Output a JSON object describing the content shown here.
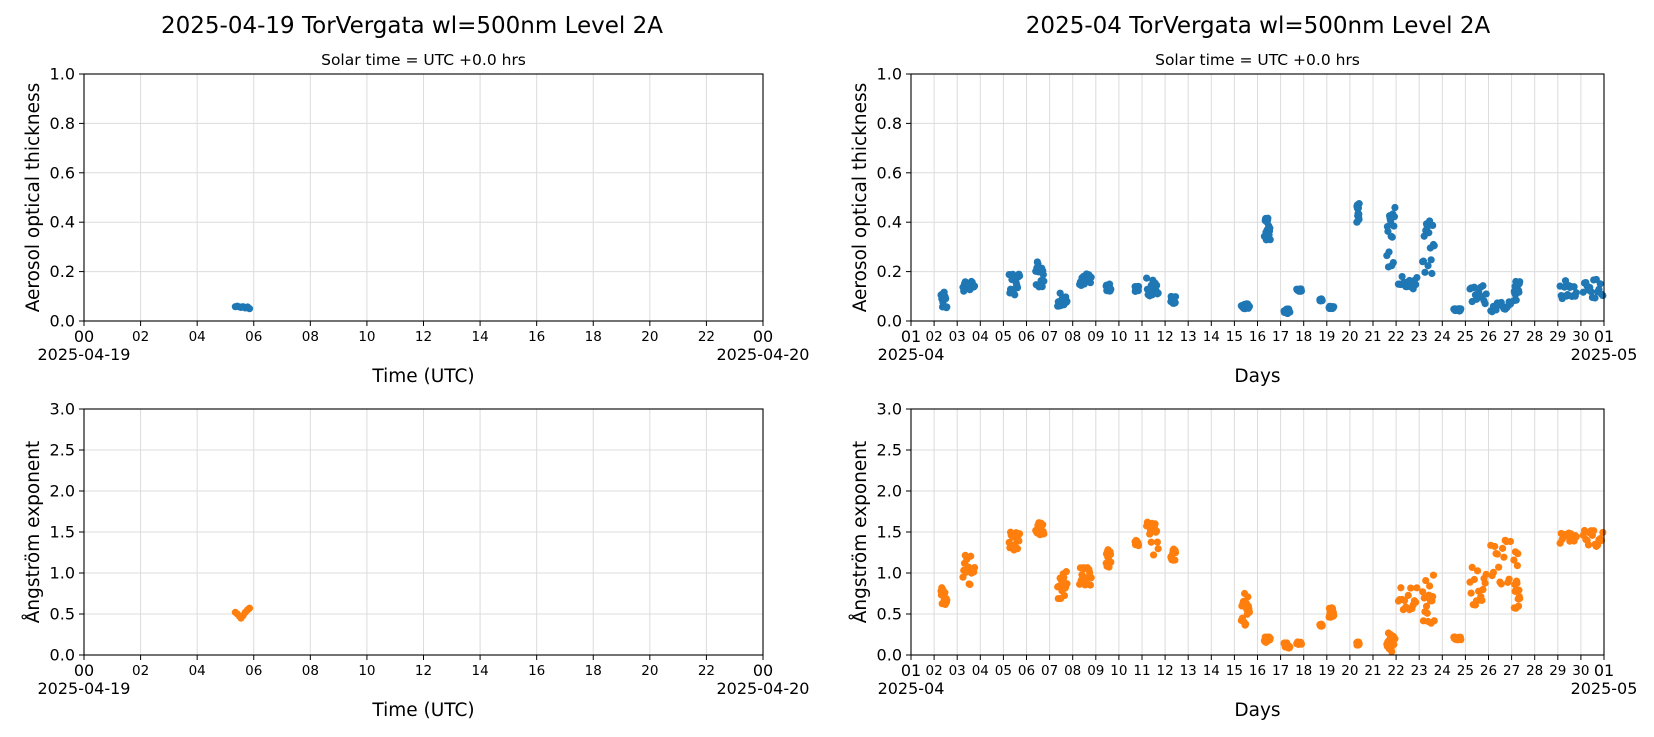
{
  "colors": {
    "aot": "#1f77b4",
    "angstrom": "#ff7f0e",
    "grid": "#dcdcdc"
  },
  "left_title": "2025-04-19  TorVergata  wl=500nm  Level 2A",
  "right_title": "2025-04  TorVergata  wl=500nm  Level 2A",
  "chart_data": [
    {
      "id": "daily_aot",
      "type": "scatter",
      "subtitle": "Solar time = UTC +0.0 hrs",
      "ylabel": "Aerosol optical thickness",
      "xlabel": "Time (UTC)",
      "xunit": "hour",
      "xlim": [
        0,
        24
      ],
      "ylim": [
        0,
        1.0
      ],
      "yticks": [
        "0.0",
        "0.2",
        "0.4",
        "0.6",
        "0.8",
        "1.0"
      ],
      "xticks": [
        "00",
        "02",
        "04",
        "06",
        "08",
        "10",
        "12",
        "14",
        "16",
        "18",
        "20",
        "22",
        "00"
      ],
      "date_left": "2025-04-19",
      "date_right": "2025-04-20",
      "grid": true,
      "points": [
        [
          5.35,
          0.058
        ],
        [
          5.42,
          0.06
        ],
        [
          5.5,
          0.057
        ],
        [
          5.55,
          0.055
        ],
        [
          5.62,
          0.058
        ],
        [
          5.7,
          0.053
        ],
        [
          5.78,
          0.057
        ],
        [
          5.85,
          0.05
        ]
      ]
    },
    {
      "id": "daily_angstrom",
      "type": "scatter",
      "ylabel": "Ångström exponent",
      "xlabel": "Time (UTC)",
      "xunit": "hour",
      "xlim": [
        0,
        24
      ],
      "ylim": [
        0,
        3.0
      ],
      "yticks": [
        "0.0",
        "0.5",
        "1.0",
        "1.5",
        "2.0",
        "2.5",
        "3.0"
      ],
      "xticks": [
        "00",
        "02",
        "04",
        "06",
        "08",
        "10",
        "12",
        "14",
        "16",
        "18",
        "20",
        "22",
        "00"
      ],
      "date_left": "2025-04-19",
      "date_right": "2025-04-20",
      "grid": true,
      "points": [
        [
          5.35,
          0.52
        ],
        [
          5.42,
          0.5
        ],
        [
          5.5,
          0.47
        ],
        [
          5.55,
          0.45
        ],
        [
          5.62,
          0.48
        ],
        [
          5.7,
          0.52
        ],
        [
          5.78,
          0.55
        ],
        [
          5.85,
          0.57
        ]
      ]
    },
    {
      "id": "monthly_aot",
      "type": "scatter",
      "subtitle": "Solar time = UTC +0.0 hrs",
      "ylabel": "Aerosol optical thickness",
      "xlabel": "Days",
      "xunit": "day",
      "xlim": [
        1,
        31
      ],
      "ylim": [
        0,
        1.0
      ],
      "yticks": [
        "0.0",
        "0.2",
        "0.4",
        "0.6",
        "0.8",
        "1.0"
      ],
      "xticks": [
        "01",
        "02",
        "03",
        "04",
        "05",
        "06",
        "07",
        "08",
        "09",
        "10",
        "11",
        "12",
        "13",
        "14",
        "15",
        "16",
        "17",
        "18",
        "19",
        "20",
        "21",
        "22",
        "23",
        "24",
        "25",
        "26",
        "27",
        "28",
        "29",
        "30",
        "01"
      ],
      "date_left": "2025-04",
      "date_right": "2025-05",
      "grid": true,
      "clusters": [
        {
          "day": 2,
          "start": 0.3,
          "end": 0.55,
          "low": 0.05,
          "high": 0.12
        },
        {
          "day": 3,
          "start": 0.25,
          "end": 0.75,
          "low": 0.12,
          "high": 0.16
        },
        {
          "day": 5,
          "start": 0.25,
          "end": 0.7,
          "low": 0.08,
          "high": 0.19
        },
        {
          "day": 6,
          "start": 0.4,
          "end": 0.75,
          "low": 0.13,
          "high": 0.24
        },
        {
          "day": 7,
          "start": 0.35,
          "end": 0.75,
          "low": 0.06,
          "high": 0.13
        },
        {
          "day": 8,
          "start": 0.3,
          "end": 0.8,
          "low": 0.14,
          "high": 0.2
        },
        {
          "day": 9,
          "start": 0.45,
          "end": 0.65,
          "low": 0.12,
          "high": 0.15
        },
        {
          "day": 10,
          "start": 0.7,
          "end": 0.85,
          "low": 0.12,
          "high": 0.14
        },
        {
          "day": 11,
          "start": 0.2,
          "end": 0.7,
          "low": 0.09,
          "high": 0.18
        },
        {
          "day": 12,
          "start": 0.25,
          "end": 0.45,
          "low": 0.07,
          "high": 0.1
        },
        {
          "day": 15,
          "start": 0.3,
          "end": 0.65,
          "low": 0.05,
          "high": 0.07
        },
        {
          "day": 16,
          "start": 0.3,
          "end": 0.55,
          "low": 0.32,
          "high": 0.43
        },
        {
          "day": 17,
          "start": 0.15,
          "end": 0.4,
          "low": 0.03,
          "high": 0.05
        },
        {
          "day": 17,
          "start": 0.7,
          "end": 0.9,
          "low": 0.12,
          "high": 0.13
        },
        {
          "day": 18,
          "start": 0.7,
          "end": 0.8,
          "low": 0.08,
          "high": 0.09
        },
        {
          "day": 19,
          "start": 0.1,
          "end": 0.3,
          "low": 0.05,
          "high": 0.06
        },
        {
          "day": 20,
          "start": 0.3,
          "end": 0.4,
          "low": 0.4,
          "high": 0.48
        },
        {
          "day": 21,
          "start": 0.6,
          "end": 0.95,
          "low": 0.21,
          "high": 0.48
        },
        {
          "day": 22,
          "start": 0.1,
          "end": 0.9,
          "low": 0.13,
          "high": 0.18
        },
        {
          "day": 23,
          "start": 0.15,
          "end": 0.65,
          "low": 0.19,
          "high": 0.42
        },
        {
          "day": 24,
          "start": 0.5,
          "end": 0.8,
          "low": 0.04,
          "high": 0.05
        },
        {
          "day": 25,
          "start": 0.2,
          "end": 0.9,
          "low": 0.07,
          "high": 0.15
        },
        {
          "day": 26,
          "start": 0.1,
          "end": 0.95,
          "low": 0.03,
          "high": 0.08
        },
        {
          "day": 27,
          "start": 0.1,
          "end": 0.35,
          "low": 0.08,
          "high": 0.16
        },
        {
          "day": 29,
          "start": 0.1,
          "end": 0.8,
          "low": 0.09,
          "high": 0.17
        },
        {
          "day": 30,
          "start": 0.1,
          "end": 0.95,
          "low": 0.09,
          "high": 0.18
        }
      ]
    },
    {
      "id": "monthly_angstrom",
      "type": "scatter",
      "ylabel": "Ångström exponent",
      "xlabel": "Days",
      "xunit": "day",
      "xlim": [
        1,
        31
      ],
      "ylim": [
        0,
        3.0
      ],
      "yticks": [
        "0.0",
        "0.5",
        "1.0",
        "1.5",
        "2.0",
        "2.5",
        "3.0"
      ],
      "xticks": [
        "01",
        "02",
        "03",
        "04",
        "05",
        "06",
        "07",
        "08",
        "09",
        "10",
        "11",
        "12",
        "13",
        "14",
        "15",
        "16",
        "17",
        "18",
        "19",
        "20",
        "21",
        "22",
        "23",
        "24",
        "25",
        "26",
        "27",
        "28",
        "29",
        "30",
        "01"
      ],
      "date_left": "2025-04",
      "date_right": "2025-05",
      "grid": true,
      "clusters": [
        {
          "day": 2,
          "start": 0.3,
          "end": 0.55,
          "low": 0.6,
          "high": 0.82
        },
        {
          "day": 3,
          "start": 0.25,
          "end": 0.75,
          "low": 0.85,
          "high": 1.22
        },
        {
          "day": 5,
          "start": 0.25,
          "end": 0.7,
          "low": 1.28,
          "high": 1.5
        },
        {
          "day": 6,
          "start": 0.4,
          "end": 0.75,
          "low": 1.4,
          "high": 1.62
        },
        {
          "day": 7,
          "start": 0.35,
          "end": 0.75,
          "low": 0.65,
          "high": 1.02
        },
        {
          "day": 8,
          "start": 0.3,
          "end": 0.8,
          "low": 0.85,
          "high": 1.07
        },
        {
          "day": 9,
          "start": 0.45,
          "end": 0.65,
          "low": 1.05,
          "high": 1.3
        },
        {
          "day": 10,
          "start": 0.7,
          "end": 0.85,
          "low": 1.33,
          "high": 1.4
        },
        {
          "day": 11,
          "start": 0.2,
          "end": 0.7,
          "low": 1.22,
          "high": 1.63
        },
        {
          "day": 12,
          "start": 0.25,
          "end": 0.45,
          "low": 1.15,
          "high": 1.3
        },
        {
          "day": 15,
          "start": 0.3,
          "end": 0.65,
          "low": 0.35,
          "high": 0.8
        },
        {
          "day": 16,
          "start": 0.3,
          "end": 0.55,
          "low": 0.15,
          "high": 0.22
        },
        {
          "day": 17,
          "start": 0.15,
          "end": 0.4,
          "low": 0.08,
          "high": 0.15
        },
        {
          "day": 17,
          "start": 0.7,
          "end": 0.9,
          "low": 0.13,
          "high": 0.16
        },
        {
          "day": 18,
          "start": 0.7,
          "end": 0.8,
          "low": 0.35,
          "high": 0.38
        },
        {
          "day": 19,
          "start": 0.1,
          "end": 0.3,
          "low": 0.42,
          "high": 0.58
        },
        {
          "day": 20,
          "start": 0.3,
          "end": 0.4,
          "low": 0.12,
          "high": 0.16
        },
        {
          "day": 21,
          "start": 0.6,
          "end": 0.95,
          "low": 0.02,
          "high": 0.28
        },
        {
          "day": 22,
          "start": 0.1,
          "end": 0.9,
          "low": 0.48,
          "high": 0.82
        },
        {
          "day": 23,
          "start": 0.15,
          "end": 0.65,
          "low": 0.38,
          "high": 1.0
        },
        {
          "day": 24,
          "start": 0.5,
          "end": 0.8,
          "low": 0.18,
          "high": 0.22
        },
        {
          "day": 25,
          "start": 0.2,
          "end": 0.9,
          "low": 0.6,
          "high": 1.1
        },
        {
          "day": 26,
          "start": 0.1,
          "end": 0.95,
          "low": 0.8,
          "high": 1.4
        },
        {
          "day": 27,
          "start": 0.1,
          "end": 0.35,
          "low": 0.55,
          "high": 1.3
        },
        {
          "day": 29,
          "start": 0.1,
          "end": 0.8,
          "low": 1.35,
          "high": 1.5
        },
        {
          "day": 30,
          "start": 0.1,
          "end": 0.95,
          "low": 1.3,
          "high": 1.53
        }
      ]
    }
  ]
}
